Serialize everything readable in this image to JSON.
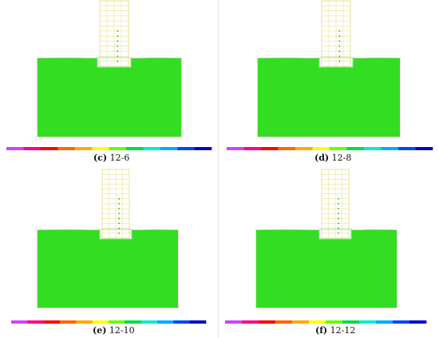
{
  "panels": [
    {
      "letter": "(c)",
      "label": "12-6"
    },
    {
      "letter": "(d)",
      "label": "12-8"
    },
    {
      "letter": "(e)",
      "label": "12-10"
    },
    {
      "letter": "(f)",
      "label": "12-12"
    }
  ],
  "colors": {
    "bands": [
      "#33dd22",
      "#ccff00",
      "#ffff00",
      "#ffd200",
      "#ffaa00",
      "#ff8800",
      "#ff5a00",
      "#ff2a00",
      "#ee0000",
      "#e2005a",
      "#ff00b4"
    ],
    "pile_grid": "#e0e07a",
    "pile_node": "#22aa22",
    "legend": [
      "#cc44ff",
      "#ff0088",
      "#ff0000",
      "#ff6600",
      "#ffaa00",
      "#ffff00",
      "#66ff00",
      "#00dd44",
      "#00eecc",
      "#00aaff",
      "#0044ff",
      "#0000cc"
    ]
  }
}
